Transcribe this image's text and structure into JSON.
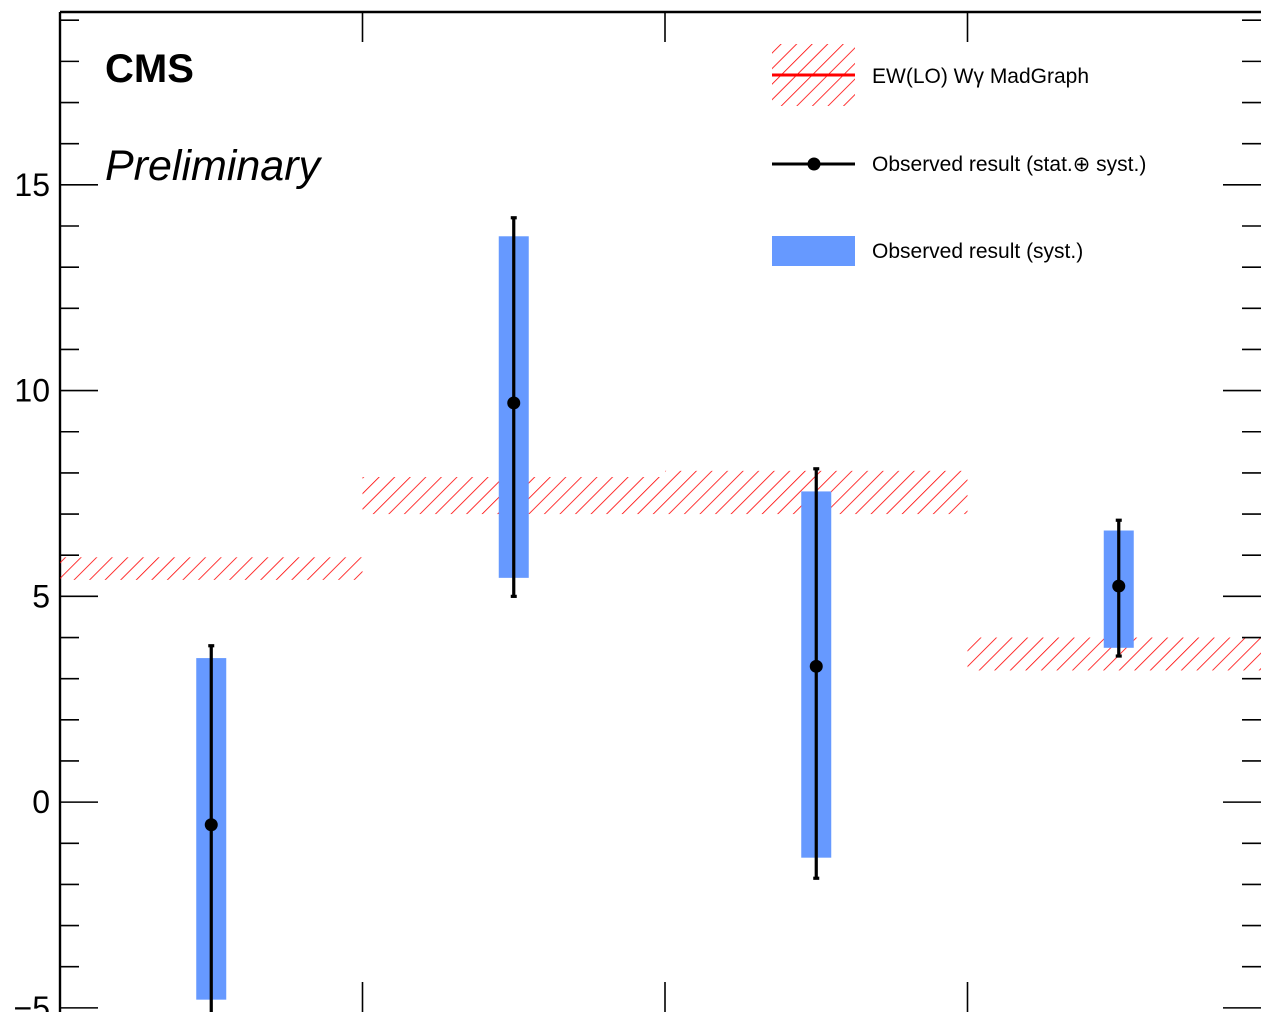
{
  "chart_data": {
    "type": "bar",
    "title": "",
    "xlabel": "",
    "ylabel": "",
    "ylim": [
      -5.1,
      19.2
    ],
    "yticks": [
      -5,
      0,
      5,
      10,
      15
    ],
    "ytick_labels": [
      "−5",
      "0",
      "5",
      "10",
      "15"
    ],
    "bins": [
      {
        "x_low": 0,
        "x_high": 1
      },
      {
        "x_low": 1,
        "x_high": 2
      },
      {
        "x_low": 2,
        "x_high": 3
      },
      {
        "x_low": 3,
        "x_high": 4
      }
    ],
    "series": [
      {
        "name": "EW(LO) Wγ MadGraph",
        "style": "hatched band",
        "color": "#ff0000",
        "bands": [
          {
            "bin": 0,
            "low": 5.4,
            "high": 5.95
          },
          {
            "bin": 1,
            "low": 7.0,
            "high": 7.9
          },
          {
            "bin": 2,
            "low": 7.0,
            "high": 8.05
          },
          {
            "bin": 3,
            "low": 3.2,
            "high": 4.0
          }
        ]
      },
      {
        "name": "Observed result (stat.⊕ syst.)",
        "style": "point with error bar",
        "color": "#000000",
        "points": [
          {
            "bin": 0,
            "value": -0.55,
            "err_low": -5.2,
            "err_high": 3.8
          },
          {
            "bin": 1,
            "value": 9.7,
            "err_low": 5.0,
            "err_high": 14.2
          },
          {
            "bin": 2,
            "value": 3.3,
            "err_low": -1.85,
            "err_high": 8.1
          },
          {
            "bin": 3,
            "value": 5.25,
            "err_low": 3.55,
            "err_high": 6.85
          }
        ]
      },
      {
        "name": "Observed result (syst.)",
        "style": "filled box",
        "color": "#6699ff",
        "bands": [
          {
            "bin": 0,
            "low": -4.8,
            "high": 3.5
          },
          {
            "bin": 1,
            "low": 5.45,
            "high": 13.75
          },
          {
            "bin": 2,
            "low": -1.35,
            "high": 7.55
          },
          {
            "bin": 3,
            "low": 3.75,
            "high": 6.6
          }
        ]
      }
    ],
    "legend_position": "top-right",
    "annotations": {
      "experiment": "CMS",
      "status": "Preliminary"
    }
  }
}
